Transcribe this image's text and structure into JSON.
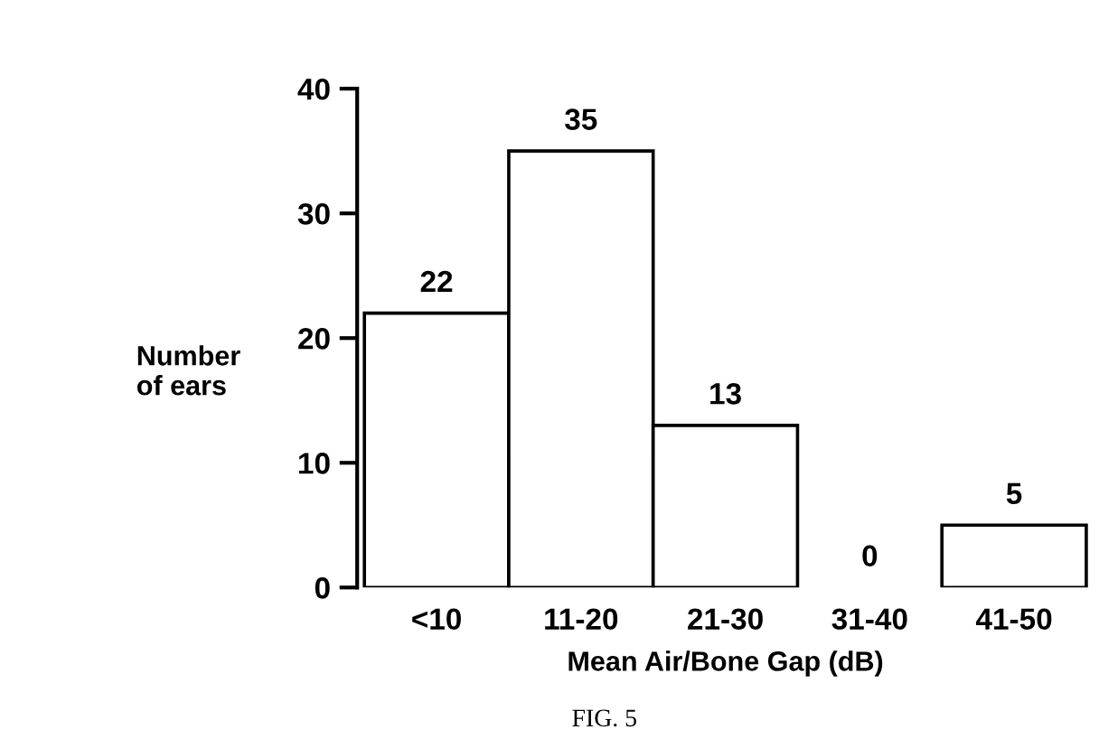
{
  "chart_data": {
    "type": "bar",
    "xlabel": "Mean Air/Bone Gap (dB)",
    "ylabel": "Number\nof ears",
    "categories": [
      "<10",
      "11-20",
      "21-30",
      "31-40",
      "41-50"
    ],
    "values": [
      22,
      35,
      13,
      0,
      5
    ],
    "color": "#ffffff",
    "ylim": [
      0,
      40
    ],
    "yticks": [
      0,
      10,
      20,
      30,
      40
    ],
    "grid": false,
    "data_labels": true,
    "annotations": [
      "FIG. 5"
    ]
  }
}
